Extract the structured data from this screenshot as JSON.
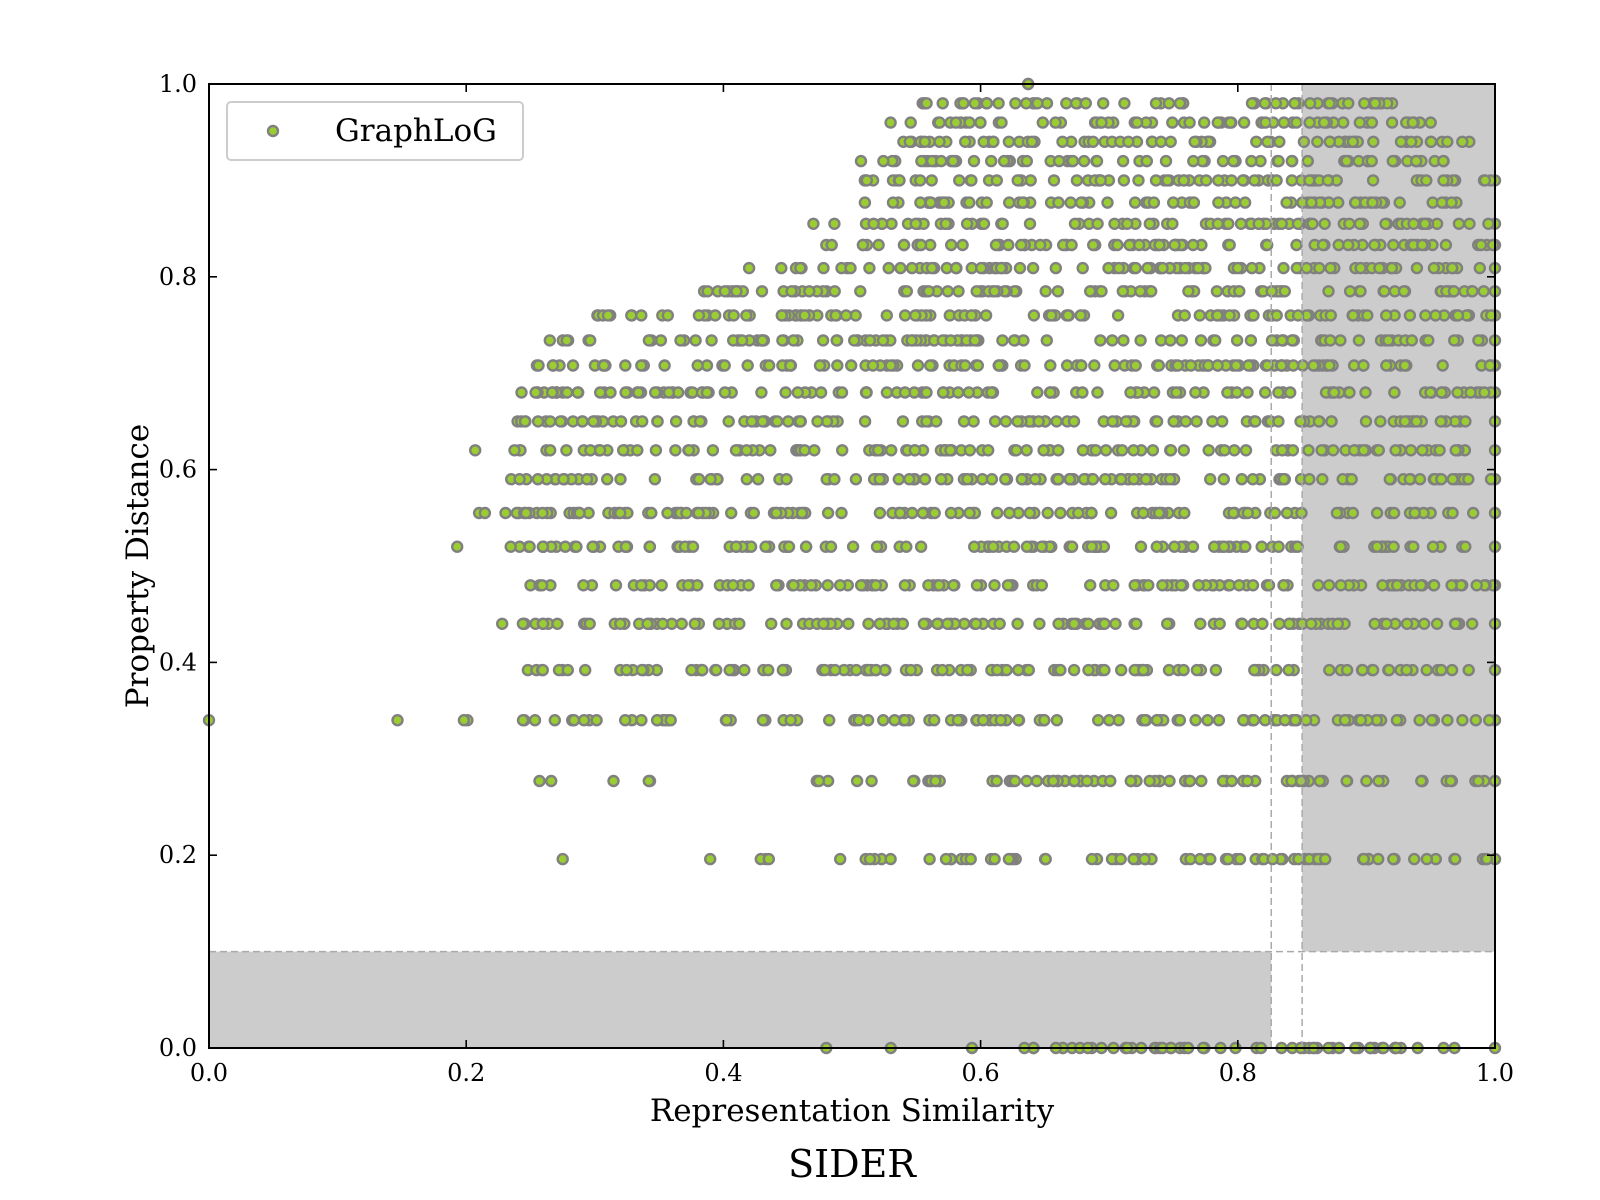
{
  "chart_data": {
    "type": "scatter",
    "title": "SIDER",
    "xlabel": "Representation Similarity",
    "ylabel": "Property Distance",
    "xlim": [
      0.0,
      1.0
    ],
    "ylim": [
      0.0,
      1.0
    ],
    "xticks": [
      "0.0",
      "0.2",
      "0.4",
      "0.6",
      "0.8",
      "1.0"
    ],
    "yticks": [
      "0.0",
      "0.2",
      "0.4",
      "0.6",
      "0.8",
      "1.0"
    ],
    "grid": false,
    "legend": {
      "position": "upper-left",
      "entries": [
        "GraphLoG"
      ]
    },
    "colors": {
      "marker_face": "#9acd32",
      "marker_edge": "#808080",
      "shade": "#cccccc",
      "guide": "#aaaaaa"
    },
    "shaded_regions": [
      {
        "x": [
          0.0,
          0.826
        ],
        "y": [
          0.0,
          0.1
        ]
      },
      {
        "x": [
          0.85,
          1.0
        ],
        "y": [
          0.1,
          1.0
        ]
      }
    ],
    "guide_lines": {
      "vertical_x": [
        0.826,
        0.85
      ],
      "horizontal_y": [
        0.1
      ]
    },
    "series": [
      {
        "name": "GraphLoG",
        "rows": [
          {
            "y": 0.0,
            "x_min": 0.48,
            "x_max": 1.0,
            "clusters": [
              [
                0.6,
                0.97
              ]
            ]
          },
          {
            "y": 0.196,
            "x_min": 0.275,
            "x_max": 1.0,
            "clusters": [
              [
                0.51,
                0.54
              ],
              [
                0.56,
                0.62
              ],
              [
                0.62,
                0.97
              ],
              [
                0.98,
                1.0
              ]
            ]
          },
          {
            "y": 0.277,
            "x_min": 0.257,
            "x_max": 1.0,
            "clusters": [
              [
                0.47,
                0.49
              ],
              [
                0.5,
                1.0
              ]
            ]
          },
          {
            "y": 0.34,
            "x_min": 0.0,
            "x_max": 1.0,
            "clusters": [
              [
                0.25,
                0.36
              ],
              [
                0.39,
                0.41
              ],
              [
                0.43,
                0.46
              ],
              [
                0.48,
                1.0
              ]
            ]
          },
          {
            "y": 0.392,
            "x_min": 0.248,
            "x_max": 1.0,
            "clusters": [
              [
                0.248,
                0.45
              ],
              [
                0.47,
                1.0
              ]
            ]
          },
          {
            "y": 0.44,
            "x_min": 0.228,
            "x_max": 1.0,
            "clusters": [
              [
                0.24,
                1.0
              ]
            ]
          },
          {
            "y": 0.48,
            "x_min": 0.25,
            "x_max": 1.0,
            "clusters": [
              [
                0.25,
                1.0
              ]
            ]
          },
          {
            "y": 0.52,
            "x_min": 0.193,
            "x_max": 1.0,
            "clusters": [
              [
                0.24,
                1.0
              ]
            ]
          },
          {
            "y": 0.555,
            "x_min": 0.21,
            "x_max": 1.0,
            "clusters": [
              [
                0.23,
                1.0
              ]
            ]
          },
          {
            "y": 0.59,
            "x_min": 0.235,
            "x_max": 1.0,
            "clusters": [
              [
                0.235,
                1.0
              ]
            ]
          },
          {
            "y": 0.62,
            "x_min": 0.207,
            "x_max": 1.0,
            "clusters": [
              [
                0.24,
                1.0
              ]
            ]
          },
          {
            "y": 0.65,
            "x_min": 0.24,
            "x_max": 1.0,
            "clusters": [
              [
                0.24,
                1.0
              ]
            ]
          },
          {
            "y": 0.68,
            "x_min": 0.243,
            "x_max": 1.0,
            "clusters": [
              [
                0.243,
                1.0
              ]
            ]
          },
          {
            "y": 0.708,
            "x_min": 0.255,
            "x_max": 1.0,
            "clusters": [
              [
                0.255,
                1.0
              ]
            ]
          },
          {
            "y": 0.734,
            "x_min": 0.265,
            "x_max": 1.0,
            "clusters": [
              [
                0.265,
                0.3
              ],
              [
                0.34,
                1.0
              ]
            ]
          },
          {
            "y": 0.76,
            "x_min": 0.302,
            "x_max": 1.0,
            "clusters": [
              [
                0.302,
                0.36
              ],
              [
                0.38,
                1.0
              ]
            ]
          },
          {
            "y": 0.785,
            "x_min": 0.385,
            "x_max": 1.0,
            "clusters": [
              [
                0.385,
                1.0
              ]
            ]
          },
          {
            "y": 0.809,
            "x_min": 0.42,
            "x_max": 1.0,
            "clusters": [
              [
                0.45,
                1.0
              ]
            ]
          },
          {
            "y": 0.833,
            "x_min": 0.48,
            "x_max": 1.0,
            "clusters": [
              [
                0.5,
                1.0
              ]
            ]
          },
          {
            "y": 0.855,
            "x_min": 0.47,
            "x_max": 1.0,
            "clusters": [
              [
                0.51,
                1.0
              ]
            ]
          },
          {
            "y": 0.877,
            "x_min": 0.51,
            "x_max": 0.97,
            "clusters": [
              [
                0.52,
                0.97
              ]
            ]
          },
          {
            "y": 0.9,
            "x_min": 0.51,
            "x_max": 1.0,
            "clusters": [
              [
                0.51,
                0.97
              ],
              [
                0.99,
                1.0
              ]
            ]
          },
          {
            "y": 0.92,
            "x_min": 0.507,
            "x_max": 0.96,
            "clusters": [
              [
                0.53,
                0.96
              ]
            ]
          },
          {
            "y": 0.94,
            "x_min": 0.54,
            "x_max": 0.98,
            "clusters": [
              [
                0.54,
                0.98
              ]
            ]
          },
          {
            "y": 0.96,
            "x_min": 0.53,
            "x_max": 0.95,
            "clusters": [
              [
                0.55,
                0.95
              ]
            ]
          },
          {
            "y": 0.98,
            "x_min": 0.555,
            "x_max": 0.92,
            "clusters": [
              [
                0.555,
                0.92
              ]
            ]
          },
          {
            "y": 1.0,
            "x_min": 0.637,
            "x_max": 0.637,
            "clusters": []
          }
        ]
      }
    ]
  }
}
